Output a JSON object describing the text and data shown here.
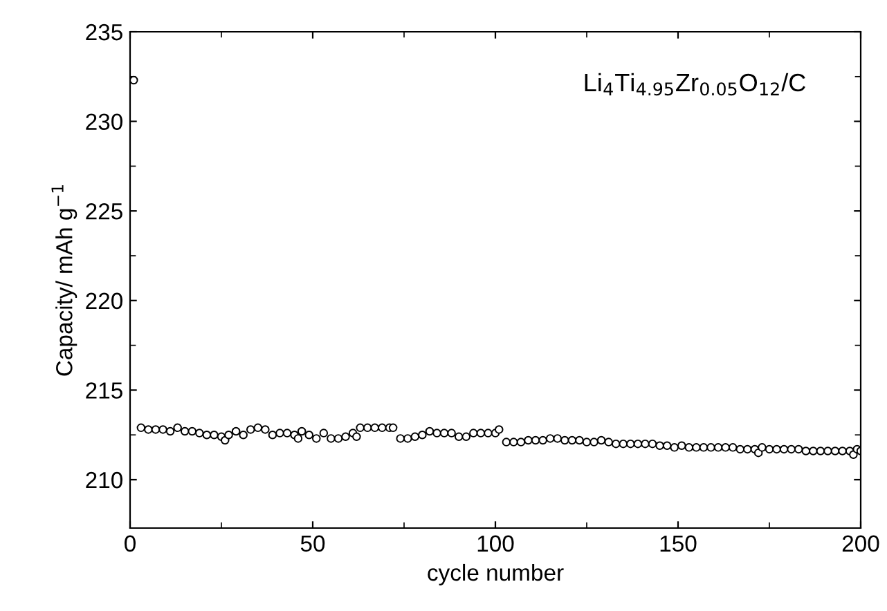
{
  "chart_data": {
    "type": "scatter",
    "xlabel": "cycle number",
    "ylabel": "Capacity/ mAh g$^{−1}$",
    "annotations": [
      "Li$_{4}$Ti$_{4.95}$Zr$_{0.05}$O$_{12}$/C"
    ],
    "xlim": [
      0,
      200
    ],
    "xticks": [
      0,
      50,
      100,
      150,
      200
    ],
    "ylim": [
      207.3,
      235
    ],
    "yticks": [
      210,
      215,
      220,
      225,
      230,
      235
    ],
    "marker": "circle",
    "grid": false,
    "series": [
      {
        "color": "#000000",
        "x": [
          1,
          3,
          5,
          7,
          9,
          11,
          13,
          15,
          17,
          19,
          21,
          23,
          25,
          26,
          27,
          29,
          31,
          33,
          35,
          37,
          39,
          41,
          43,
          45,
          46,
          47,
          49,
          51,
          53,
          55,
          57,
          59,
          61,
          62,
          63,
          65,
          67,
          69,
          71,
          72,
          74,
          76,
          78,
          80,
          82,
          84,
          86,
          88,
          90,
          92,
          94,
          96,
          98,
          100,
          101,
          103,
          105,
          107,
          109,
          111,
          113,
          115,
          117,
          119,
          121,
          123,
          125,
          127,
          129,
          131,
          133,
          135,
          137,
          139,
          141,
          143,
          145,
          147,
          149,
          151,
          153,
          155,
          157,
          159,
          161,
          163,
          165,
          167,
          169,
          171,
          172,
          173,
          175,
          177,
          179,
          181,
          183,
          185,
          187,
          189,
          191,
          193,
          195,
          197,
          198,
          199,
          200
        ],
        "values": [
          232.3,
          212.9,
          212.8,
          212.8,
          212.8,
          212.7,
          212.9,
          212.7,
          212.7,
          212.6,
          212.5,
          212.5,
          212.4,
          212.2,
          212.5,
          212.7,
          212.5,
          212.8,
          212.9,
          212.8,
          212.5,
          212.6,
          212.6,
          212.5,
          212.3,
          212.7,
          212.5,
          212.3,
          212.6,
          212.3,
          212.3,
          212.4,
          212.6,
          212.4,
          212.9,
          212.9,
          212.9,
          212.9,
          212.9,
          212.9,
          212.3,
          212.3,
          212.4,
          212.5,
          212.7,
          212.6,
          212.6,
          212.6,
          212.4,
          212.4,
          212.6,
          212.6,
          212.6,
          212.6,
          212.8,
          212.1,
          212.1,
          212.1,
          212.2,
          212.2,
          212.2,
          212.3,
          212.3,
          212.2,
          212.2,
          212.2,
          212.1,
          212.1,
          212.2,
          212.1,
          212.0,
          212.0,
          212.0,
          212.0,
          212.0,
          212.0,
          211.9,
          211.9,
          211.8,
          211.9,
          211.8,
          211.8,
          211.8,
          211.8,
          211.8,
          211.8,
          211.8,
          211.7,
          211.7,
          211.7,
          211.5,
          211.8,
          211.7,
          211.7,
          211.7,
          211.7,
          211.7,
          211.6,
          211.6,
          211.6,
          211.6,
          211.6,
          211.6,
          211.6,
          211.4,
          211.7,
          211.6
        ]
      }
    ]
  }
}
